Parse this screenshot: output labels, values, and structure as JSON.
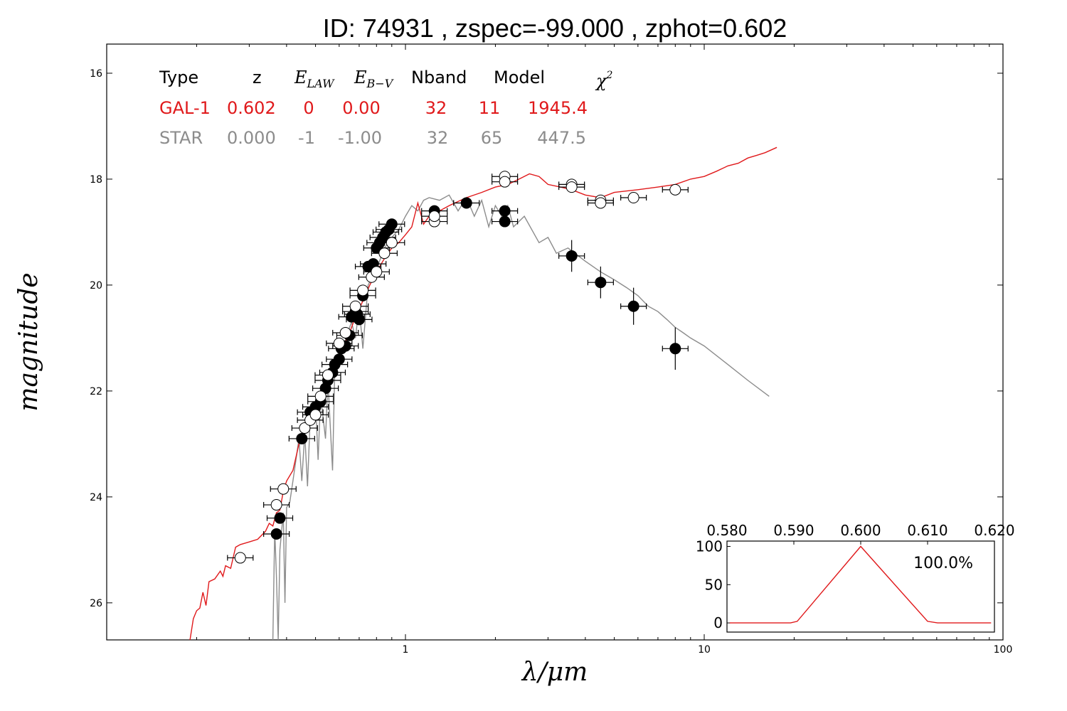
{
  "title": "ID:  74931 , zspec=-99.000 , zphot=0.602",
  "colors": {
    "galaxy": "#e0191b",
    "star": "#8c8c8c",
    "axis": "#000000"
  },
  "fit_table": {
    "headers": {
      "type": "Type",
      "z": "z",
      "elaw": "E",
      "elaw_sub": "LAW",
      "ebv": "E",
      "ebv_sub": "B−V",
      "nband": "Nband",
      "model": "Model",
      "chi2": "χ",
      "chi2_sup": "2"
    },
    "galaxy": {
      "type": "GAL-1",
      "z": "0.602",
      "elaw": "0",
      "ebv": "0.00",
      "nband": "32",
      "model": "11",
      "chi2": "1945.4"
    },
    "star": {
      "type": "STAR",
      "z": "0.000",
      "elaw": "-1",
      "ebv": "-1.00",
      "nband": "32",
      "model": "65",
      "chi2": "447.5"
    }
  },
  "chart_data": [
    {
      "type": "scatter",
      "xlabel": "λ/μm",
      "ylabel": "magnitude",
      "xscale": "log",
      "xlim": [
        0.1,
        100
      ],
      "ylim": [
        26.7,
        15.45
      ],
      "y_inverted": true,
      "x_tick_labels": [
        "1",
        "10",
        "100"
      ],
      "x_ticks": [
        1,
        10,
        100
      ],
      "y_ticks": [
        16,
        18,
        20,
        22,
        24,
        26
      ],
      "y_tick_labels": [
        "16",
        "18",
        "20",
        "22",
        "24",
        "26"
      ],
      "series": [
        {
          "kind": "line",
          "color_key": "galaxy",
          "points": [
            [
              0.19,
              26.7
            ],
            [
              0.195,
              26.3
            ],
            [
              0.2,
              26.15
            ],
            [
              0.205,
              26.1
            ],
            [
              0.21,
              25.8
            ],
            [
              0.215,
              26.05
            ],
            [
              0.22,
              25.6
            ],
            [
              0.23,
              25.55
            ],
            [
              0.24,
              25.4
            ],
            [
              0.245,
              25.5
            ],
            [
              0.25,
              25.3
            ],
            [
              0.26,
              25.35
            ],
            [
              0.27,
              24.95
            ],
            [
              0.28,
              24.9
            ],
            [
              0.3,
              24.85
            ],
            [
              0.32,
              24.8
            ],
            [
              0.34,
              24.65
            ],
            [
              0.35,
              24.5
            ],
            [
              0.36,
              24.55
            ],
            [
              0.37,
              24.3
            ],
            [
              0.38,
              24.25
            ],
            [
              0.39,
              23.9
            ],
            [
              0.4,
              23.7
            ],
            [
              0.42,
              23.5
            ],
            [
              0.44,
              23.0
            ],
            [
              0.46,
              22.75
            ],
            [
              0.48,
              22.45
            ],
            [
              0.5,
              22.25
            ],
            [
              0.52,
              22.05
            ],
            [
              0.55,
              21.8
            ],
            [
              0.58,
              21.5
            ],
            [
              0.62,
              21.15
            ],
            [
              0.65,
              20.9
            ],
            [
              0.68,
              20.6
            ],
            [
              0.72,
              20.3
            ],
            [
              0.76,
              20.0
            ],
            [
              0.8,
              19.75
            ],
            [
              0.85,
              19.5
            ],
            [
              0.9,
              19.3
            ],
            [
              0.95,
              19.2
            ],
            [
              1.0,
              19.05
            ],
            [
              1.05,
              18.9
            ],
            [
              1.1,
              18.45
            ],
            [
              1.15,
              18.85
            ],
            [
              1.2,
              18.7
            ],
            [
              1.3,
              18.6
            ],
            [
              1.4,
              18.5
            ],
            [
              1.6,
              18.35
            ],
            [
              1.8,
              18.25
            ],
            [
              2.0,
              18.15
            ],
            [
              2.2,
              18.1
            ],
            [
              2.4,
              18.0
            ],
            [
              2.6,
              17.9
            ],
            [
              2.8,
              17.95
            ],
            [
              3.0,
              18.1
            ],
            [
              3.3,
              18.15
            ],
            [
              3.6,
              18.2
            ],
            [
              4.0,
              18.3
            ],
            [
              4.5,
              18.35
            ],
            [
              5.0,
              18.25
            ],
            [
              6.0,
              18.2
            ],
            [
              7.0,
              18.15
            ],
            [
              8.0,
              18.1
            ],
            [
              9.0,
              18.0
            ],
            [
              10.0,
              17.95
            ],
            [
              11.0,
              17.85
            ],
            [
              12.0,
              17.75
            ],
            [
              13.0,
              17.7
            ],
            [
              14.0,
              17.6
            ],
            [
              15.0,
              17.55
            ],
            [
              16.0,
              17.5
            ],
            [
              17.5,
              17.4
            ]
          ]
        },
        {
          "kind": "line",
          "color_key": "star",
          "points": [
            [
              0.36,
              26.7
            ],
            [
              0.365,
              24.6
            ],
            [
              0.37,
              25.5
            ],
            [
              0.375,
              26.7
            ],
            [
              0.38,
              25.0
            ],
            [
              0.39,
              24.3
            ],
            [
              0.395,
              26.0
            ],
            [
              0.4,
              24.2
            ],
            [
              0.41,
              24.1
            ],
            [
              0.42,
              23.7
            ],
            [
              0.44,
              22.9
            ],
            [
              0.45,
              23.7
            ],
            [
              0.46,
              22.8
            ],
            [
              0.47,
              23.8
            ],
            [
              0.48,
              22.5
            ],
            [
              0.5,
              22.2
            ],
            [
              0.51,
              23.3
            ],
            [
              0.52,
              22.1
            ],
            [
              0.54,
              22.9
            ],
            [
              0.55,
              21.8
            ],
            [
              0.57,
              23.5
            ],
            [
              0.58,
              21.6
            ],
            [
              0.6,
              21.4
            ],
            [
              0.62,
              21.2
            ],
            [
              0.64,
              20.9
            ],
            [
              0.66,
              20.7
            ],
            [
              0.68,
              21.0
            ],
            [
              0.7,
              20.4
            ],
            [
              0.72,
              21.2
            ],
            [
              0.75,
              20.0
            ],
            [
              0.8,
              19.7
            ],
            [
              0.85,
              19.3
            ],
            [
              0.9,
              19.1
            ],
            [
              0.95,
              18.95
            ],
            [
              1.0,
              18.7
            ],
            [
              1.05,
              18.5
            ],
            [
              1.1,
              18.6
            ],
            [
              1.15,
              18.4
            ],
            [
              1.2,
              18.35
            ],
            [
              1.3,
              18.4
            ],
            [
              1.4,
              18.3
            ],
            [
              1.5,
              18.6
            ],
            [
              1.6,
              18.35
            ],
            [
              1.7,
              18.7
            ],
            [
              1.8,
              18.4
            ],
            [
              1.9,
              18.9
            ],
            [
              2.0,
              18.5
            ],
            [
              2.1,
              18.7
            ],
            [
              2.2,
              18.5
            ],
            [
              2.3,
              18.9
            ],
            [
              2.5,
              18.7
            ],
            [
              2.8,
              19.2
            ],
            [
              3.0,
              19.1
            ],
            [
              3.2,
              19.4
            ],
            [
              3.5,
              19.3
            ],
            [
              4.0,
              19.55
            ],
            [
              4.5,
              19.75
            ],
            [
              5.0,
              19.9
            ],
            [
              5.5,
              20.05
            ],
            [
              6.0,
              20.2
            ],
            [
              6.5,
              20.4
            ],
            [
              7.0,
              20.5
            ],
            [
              7.5,
              20.65
            ],
            [
              8.0,
              20.8
            ],
            [
              8.5,
              20.9
            ],
            [
              9.0,
              21.0
            ],
            [
              10.0,
              21.15
            ],
            [
              12.0,
              21.5
            ],
            [
              14.0,
              21.8
            ],
            [
              16.5,
              22.1
            ]
          ]
        },
        {
          "kind": "points",
          "style": "filled",
          "points": [
            [
              0.37,
              24.7
            ],
            [
              0.38,
              24.4
            ],
            [
              0.45,
              22.9
            ],
            [
              0.48,
              22.4
            ],
            [
              0.5,
              22.3
            ],
            [
              0.52,
              22.2
            ],
            [
              0.54,
              21.95
            ],
            [
              0.55,
              21.8
            ],
            [
              0.57,
              21.65
            ],
            [
              0.58,
              21.5
            ],
            [
              0.6,
              21.4
            ],
            [
              0.61,
              21.2
            ],
            [
              0.63,
              21.15
            ],
            [
              0.65,
              20.95
            ],
            [
              0.66,
              20.6
            ],
            [
              0.68,
              20.5
            ],
            [
              0.69,
              20.55
            ],
            [
              0.7,
              20.65
            ],
            [
              0.72,
              20.2
            ],
            [
              0.75,
              19.65
            ],
            [
              0.78,
              19.6
            ],
            [
              0.8,
              19.3
            ],
            [
              0.82,
              19.2
            ],
            [
              0.84,
              19.1
            ],
            [
              0.86,
              19.0
            ],
            [
              0.88,
              18.95
            ],
            [
              0.9,
              18.85
            ],
            [
              1.25,
              18.6
            ],
            [
              1.6,
              18.45
            ],
            [
              2.15,
              18.6
            ],
            [
              2.15,
              18.8
            ],
            [
              3.6,
              19.45
            ],
            [
              4.5,
              19.95
            ],
            [
              5.8,
              20.4
            ],
            [
              8.0,
              21.2
            ]
          ],
          "yerr": [
            0,
            0,
            0,
            0,
            0,
            0,
            0,
            0,
            0,
            0,
            0,
            0,
            0,
            0,
            0,
            0,
            0,
            0,
            0,
            0,
            0,
            0,
            0,
            0,
            0,
            0,
            0,
            0,
            0,
            0,
            0,
            0.3,
            0.3,
            0.35,
            0.4
          ]
        },
        {
          "kind": "points",
          "style": "open",
          "points": [
            [
              0.28,
              25.15
            ],
            [
              0.37,
              24.15
            ],
            [
              0.39,
              23.85
            ],
            [
              0.46,
              22.7
            ],
            [
              0.48,
              22.55
            ],
            [
              0.5,
              22.45
            ],
            [
              0.52,
              22.1
            ],
            [
              0.55,
              21.7
            ],
            [
              0.6,
              21.1
            ],
            [
              0.63,
              20.9
            ],
            [
              0.68,
              20.4
            ],
            [
              0.72,
              20.1
            ],
            [
              0.77,
              19.85
            ],
            [
              0.8,
              19.75
            ],
            [
              0.85,
              19.4
            ],
            [
              0.9,
              19.2
            ],
            [
              1.25,
              18.8
            ],
            [
              1.25,
              18.7
            ],
            [
              2.15,
              17.95
            ],
            [
              2.15,
              18.05
            ],
            [
              3.6,
              18.1
            ],
            [
              3.6,
              18.15
            ],
            [
              4.5,
              18.4
            ],
            [
              4.5,
              18.45
            ],
            [
              5.8,
              18.35
            ],
            [
              8.0,
              18.2
            ]
          ]
        }
      ]
    },
    {
      "type": "line",
      "title": "100.0%",
      "x_tick_labels": [
        "0.580",
        "0.590",
        "0.600",
        "0.610",
        "0.620"
      ],
      "x_ticks": [
        0.58,
        0.59,
        0.6,
        0.61,
        0.62
      ],
      "y_ticks": [
        0,
        50,
        100
      ],
      "y_tick_labels": [
        "0",
        "50",
        "100"
      ],
      "xlim": [
        0.58,
        0.62
      ],
      "ylim": [
        -12,
        107
      ],
      "color_key": "galaxy",
      "points": [
        [
          0.5804,
          0
        ],
        [
          0.5895,
          0
        ],
        [
          0.5905,
          2
        ],
        [
          0.6,
          100
        ],
        [
          0.61,
          2
        ],
        [
          0.6115,
          0
        ],
        [
          0.6195,
          0
        ]
      ]
    }
  ]
}
